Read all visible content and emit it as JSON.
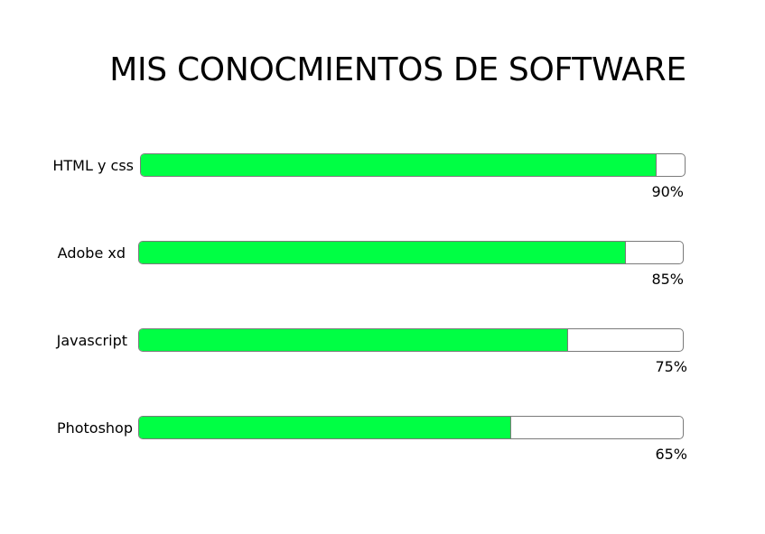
{
  "title": "MIS CONOCMIENTOS DE SOFTWARE",
  "chart_data": {
    "type": "bar",
    "orientation": "horizontal",
    "title": "MIS CONOCMIENTOS DE SOFTWARE",
    "categories": [
      "HTML y css",
      "Adobe xd",
      "Javascript",
      "Photoshop"
    ],
    "values": [
      90,
      85,
      75,
      65
    ],
    "value_labels": [
      "90%",
      "85%",
      "75%",
      "65%"
    ],
    "xlim": [
      0,
      100
    ],
    "grid": false,
    "legend": "none",
    "colors": {
      "fill": "#00ff44",
      "track": "#ffffff",
      "border": "#7a7a7a"
    }
  }
}
